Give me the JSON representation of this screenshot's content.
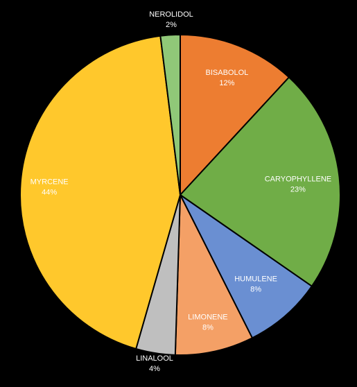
{
  "chart_data": {
    "type": "pie",
    "title": "",
    "background": "#000000",
    "slice_border_color": "#000000",
    "start_angle_deg": 0,
    "direction": "clockwise",
    "labels_position": "inside",
    "legend": "none",
    "slices": [
      {
        "label": "BISABOLOL",
        "value": 12,
        "value_label": "12%",
        "color": "#ED7D31",
        "label_color": "#FFFFFF"
      },
      {
        "label": "CARYOPHYLLENE",
        "value": 23,
        "value_label": "23%",
        "color": "#70AD47",
        "label_color": "#FFFFFF"
      },
      {
        "label": "HUMULENE",
        "value": 8,
        "value_label": "8%",
        "color": "#6A8FD2",
        "label_color": "#FFFFFF"
      },
      {
        "label": "LIMONENE",
        "value": 8,
        "value_label": "8%",
        "color": "#F4A066",
        "label_color": "#FFFFFF"
      },
      {
        "label": "LINALOOL",
        "value": 4,
        "value_label": "4%",
        "color": "#BFBFBF",
        "label_color": "#FFFFFF"
      },
      {
        "label": "MYRCENE",
        "value": 44,
        "value_label": "44%",
        "color": "#FFC82C",
        "label_color": "#FFFFFF"
      },
      {
        "label": "NEROLIDOL",
        "value": 2,
        "value_label": "2%",
        "color": "#90C878",
        "label_color": "#FFFFFF"
      }
    ]
  }
}
